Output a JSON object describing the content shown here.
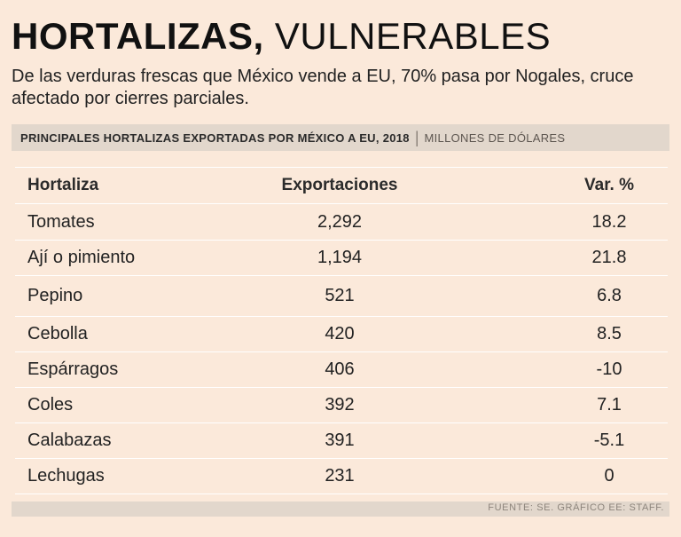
{
  "headline": {
    "bold": "HORTALIZAS,",
    "light": "VULNERABLES"
  },
  "subtitle": "De las verduras frescas que México vende a EU, 70% pasa por Nogales, cruce afectado por cierres parciales.",
  "table_title": "PRINCIPALES HORTALIZAS EXPORTADAS POR MÉXICO A EU, 2018",
  "table_unit": "MILLONES DE DÓLARES",
  "source": "FUENTE: SE. GRÁFICO EE: STAFF.",
  "colors": {
    "background": "#fbe9da",
    "bar": "#e2d7cc",
    "rule": "#ffffff"
  },
  "chart_data": {
    "type": "table",
    "title": "PRINCIPALES HORTALIZAS EXPORTADAS POR MÉXICO A EU, 2018",
    "unit": "MILLONES DE DÓLARES",
    "columns": [
      "Hortaliza",
      "Exportaciones",
      "Var. %"
    ],
    "rows": [
      {
        "name": "Tomates",
        "exports": "2,292",
        "var": "18.2"
      },
      {
        "name": "Ají o pimiento",
        "exports": "1,194",
        "var": "21.8"
      },
      {
        "name": "Pepino",
        "exports": "521",
        "var": "6.8"
      },
      {
        "name": "Cebolla",
        "exports": "420",
        "var": "8.5"
      },
      {
        "name": "Espárragos",
        "exports": "406",
        "var": "-10"
      },
      {
        "name": "Coles",
        "exports": "392",
        "var": "7.1"
      },
      {
        "name": "Calabazas",
        "exports": "391",
        "var": "-5.1"
      },
      {
        "name": "Lechugas",
        "exports": "231",
        "var": "0"
      }
    ]
  }
}
